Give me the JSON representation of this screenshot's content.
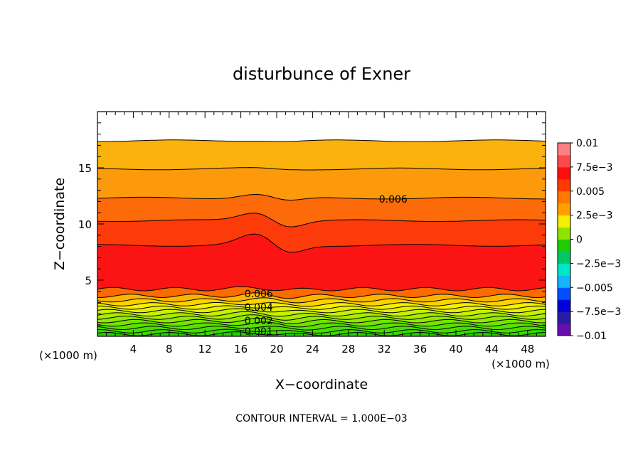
{
  "chart_data": {
    "type": "heatmap",
    "title": "disturbunce of Exner",
    "xlabel": "X−coordinate",
    "ylabel": "Z−coordinate",
    "x_unit": "(×1000 m)",
    "y_unit": "(×1000 m)",
    "xlim": [
      0,
      50
    ],
    "ylim": [
      0,
      20
    ],
    "x_ticks": [
      4,
      8,
      12,
      16,
      20,
      24,
      28,
      32,
      36,
      40,
      44,
      48
    ],
    "y_ticks": [
      5,
      10,
      15
    ],
    "colorbar": {
      "range": [
        -0.01,
        0.01
      ],
      "tick_values": [
        0.01,
        0.0075,
        0.005,
        0.0025,
        0,
        -0.0025,
        -0.005,
        -0.0075,
        -0.01
      ],
      "tick_labels": [
        "0.01",
        "7.5e−3",
        "0.005",
        "2.5e−3",
        "0",
        "−2.5e−3",
        "−0.005",
        "−7.5e−3",
        "−0.01"
      ],
      "colors": [
        "#6a0dad",
        "#2a1aa8",
        "#0000d8",
        "#0050ff",
        "#14b4ff",
        "#00e6c8",
        "#00c864",
        "#1ecc00",
        "#8ee400",
        "#f4f000",
        "#ffa000",
        "#ff7800",
        "#ff3a00",
        "#ff0e0e",
        "#ff4848",
        "#ff8080"
      ]
    },
    "band_levels_z": [
      0.2,
      0.45,
      0.75,
      1.05,
      1.35,
      1.65,
      1.95,
      2.25,
      2.55,
      2.85,
      3.2,
      3.6,
      4.2,
      8.1,
      10.3,
      12.3,
      14.9,
      17.4,
      20
    ],
    "band_colors": [
      "#2ad400",
      "#3ad800",
      "#48dc00",
      "#5ce000",
      "#72e400",
      "#90e800",
      "#aaec00",
      "#c8f000",
      "#e0f000",
      "#f8f000",
      "#fcd200",
      "#fcb400",
      "#fc6a00",
      "#fc1414",
      "#fc3a0a",
      "#fc6a0a",
      "#fc9a0c",
      "#fcb20c"
    ],
    "contour_labels": [
      {
        "text": "0.006",
        "x": 33,
        "z": 12.2
      },
      {
        "text": "0.006",
        "x": 18,
        "z": 3.8
      },
      {
        "text": "0.004",
        "x": 18,
        "z": 2.6
      },
      {
        "text": "0.002",
        "x": 18,
        "z": 1.4
      },
      {
        "text": "0.001",
        "x": 18,
        "z": 0.45
      }
    ],
    "footer": "CONTOUR INTERVAL = 1.000E−03"
  }
}
